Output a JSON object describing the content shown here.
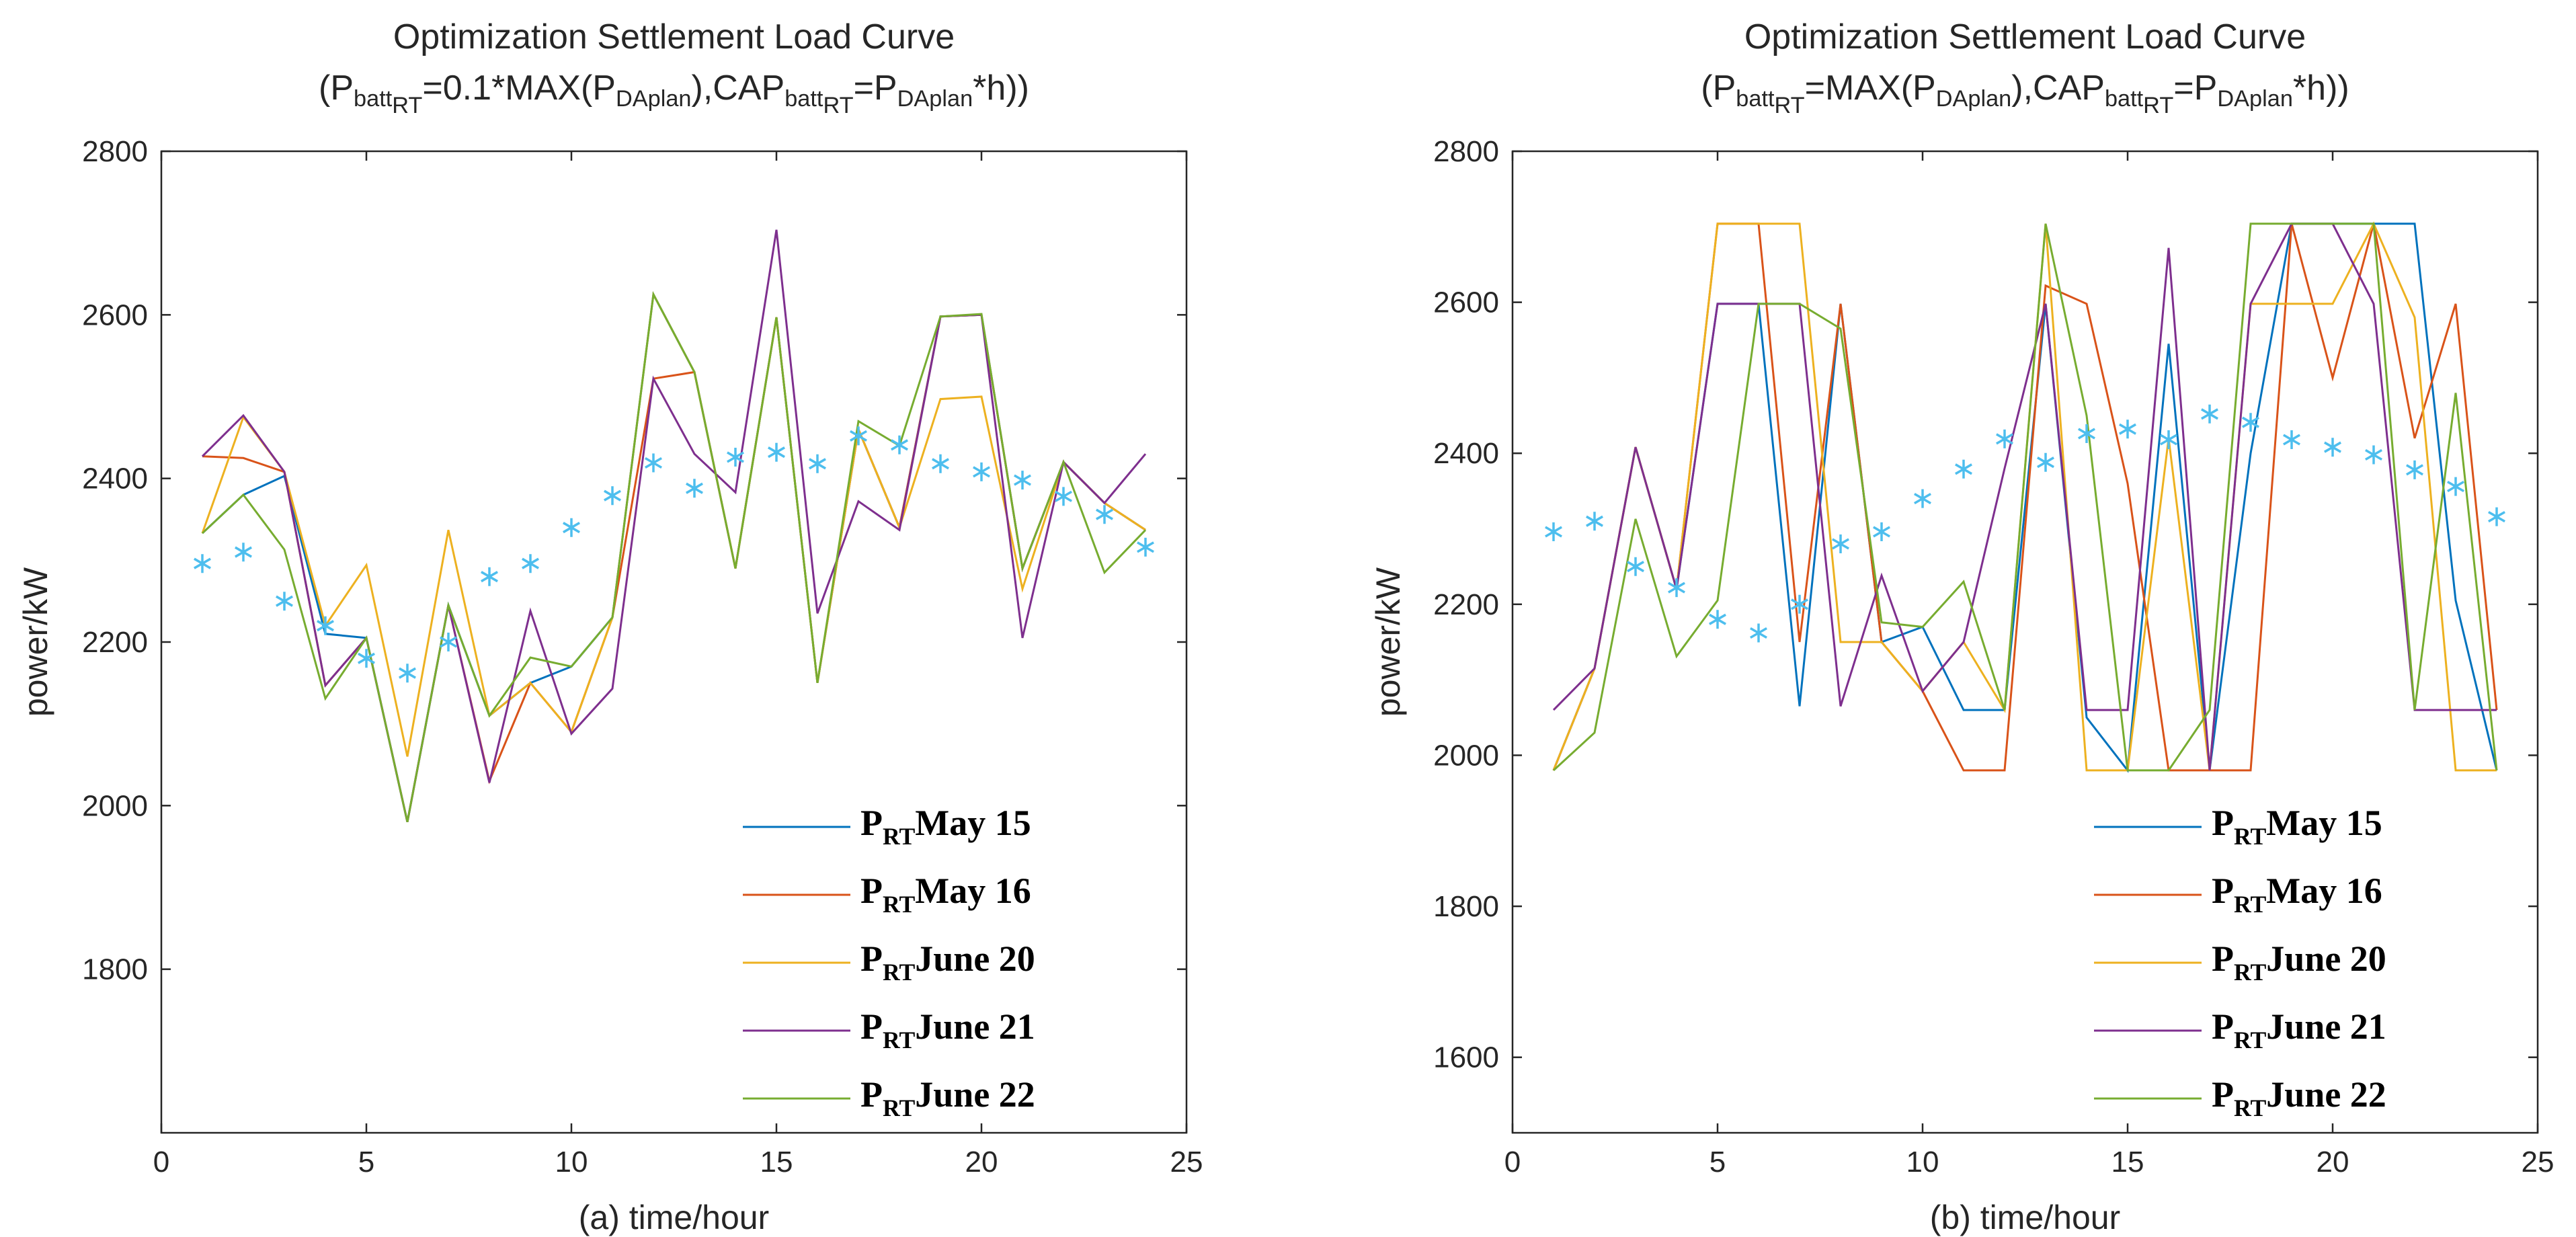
{
  "colors": {
    "series": [
      "#0072BD",
      "#D95319",
      "#EDB120",
      "#7E2F8E",
      "#77AC30"
    ],
    "marker": "#4DBEEE",
    "axis": "#262626"
  },
  "chart_data": [
    {
      "type": "line",
      "title": "Optimization Settlement Load Curve",
      "subtitle": {
        "t1": "(P",
        "s1": "batt",
        "ss1": "RT",
        "t2": "=0.1*MAX(P",
        "s2": "DAplan",
        "t3": "),CAP",
        "s3": "batt",
        "ss3": "RT",
        "t4": "=P",
        "s4": "DAplan",
        "t5": "*h))"
      },
      "xlabel": "(a) time/hour",
      "ylabel": "power/kW",
      "xlim": [
        0,
        25
      ],
      "ylim": [
        1600,
        2800
      ],
      "xticks": [
        "0",
        "5",
        "10",
        "15",
        "20",
        "25"
      ],
      "yticks": [
        "1800",
        "2000",
        "2200",
        "2400",
        "2600",
        "2800"
      ],
      "legend_position": "bottom-right",
      "x": [
        1,
        2,
        3,
        4,
        5,
        6,
        7,
        8,
        9,
        10,
        11,
        12,
        13,
        14,
        15,
        16,
        17,
        18,
        19,
        20,
        21,
        22,
        23,
        24
      ],
      "series": [
        {
          "name": "May 15",
          "prefix": "P",
          "sub": "RT",
          "values": [
            2333,
            2380,
            2403,
            2210,
            2205,
            1980,
            2245,
            2110,
            2150,
            2170,
            2230,
            2625,
            2530,
            2290,
            2597,
            2150,
            2460,
            2340,
            2598,
            2600,
            2290,
            2420,
            2370,
            2337
          ]
        },
        {
          "name": "May 16",
          "prefix": "P",
          "sub": "RT",
          "values": [
            2427,
            2425,
            2408,
            2147,
            2205,
            1980,
            2245,
            2030,
            2150,
            2090,
            2230,
            2522,
            2530,
            2290,
            2597,
            2150,
            2460,
            2340,
            2598,
            2600,
            2290,
            2420,
            2370,
            2337
          ]
        },
        {
          "name": "June 20",
          "prefix": "P",
          "sub": "RT",
          "values": [
            2333,
            2475,
            2408,
            2220,
            2294,
            2060,
            2337,
            2110,
            2150,
            2090,
            2230,
            2625,
            2530,
            2290,
            2597,
            2150,
            2460,
            2340,
            2497,
            2500,
            2265,
            2420,
            2370,
            2337
          ]
        },
        {
          "name": "June 21",
          "prefix": "P",
          "sub": "RT",
          "values": [
            2427,
            2477,
            2408,
            2147,
            2205,
            1980,
            2245,
            2028,
            2238,
            2088,
            2143,
            2522,
            2430,
            2383,
            2704,
            2235,
            2372,
            2337,
            2598,
            2600,
            2205,
            2420,
            2370,
            2430
          ]
        },
        {
          "name": "June 22",
          "prefix": "P",
          "sub": "RT",
          "values": [
            2333,
            2380,
            2313,
            2131,
            2205,
            1980,
            2245,
            2110,
            2181,
            2170,
            2230,
            2625,
            2530,
            2290,
            2597,
            2150,
            2470,
            2440,
            2598,
            2601,
            2290,
            2420,
            2285,
            2337
          ]
        }
      ],
      "markers": {
        "symbol": "*",
        "values": [
          2296,
          2310,
          2250,
          2220,
          2180,
          2162,
          2200,
          2280,
          2296,
          2340,
          2379,
          2419,
          2388,
          2426,
          2432,
          2418,
          2452,
          2441,
          2418,
          2408,
          2398,
          2378,
          2356,
          2316
        ]
      }
    },
    {
      "type": "line",
      "title": "Optimization Settlement Load Curve",
      "subtitle": {
        "t1": "(P",
        "s1": "batt",
        "ss1": "RT",
        "t2": "=MAX(P",
        "s2": "DAplan",
        "t3": "),CAP",
        "s3": "batt",
        "ss3": "RT",
        "t4": "=P",
        "s4": "DAplan",
        "t5": "*h))"
      },
      "xlabel": "(b) time/hour",
      "ylabel": "power/kW",
      "xlim": [
        0,
        25
      ],
      "ylim": [
        1500,
        2800
      ],
      "xticks": [
        "0",
        "5",
        "10",
        "15",
        "20",
        "25"
      ],
      "yticks": [
        "1600",
        "1800",
        "2000",
        "2200",
        "2400",
        "2600",
        "2800"
      ],
      "legend_position": "bottom-right",
      "x": [
        1,
        2,
        3,
        4,
        5,
        6,
        7,
        8,
        9,
        10,
        11,
        12,
        13,
        14,
        15,
        16,
        17,
        18,
        19,
        20,
        21,
        22,
        23,
        24
      ],
      "series": [
        {
          "name": "May 15",
          "prefix": "P",
          "sub": "RT",
          "values": [
            1980,
            2115,
            2408,
            2220,
            2598,
            2598,
            2065,
            2598,
            2150,
            2170,
            2060,
            2060,
            2598,
            2050,
            1980,
            2545,
            1980,
            2400,
            2704,
            2704,
            2704,
            2704,
            2205,
            1980
          ]
        },
        {
          "name": "May 16",
          "prefix": "P",
          "sub": "RT",
          "values": [
            1980,
            2115,
            2408,
            2220,
            2704,
            2704,
            2150,
            2598,
            2150,
            2085,
            1980,
            1980,
            2622,
            2598,
            2360,
            1980,
            1980,
            1980,
            2704,
            2500,
            2704,
            2420,
            2598,
            2060
          ]
        },
        {
          "name": "June 20",
          "prefix": "P",
          "sub": "RT",
          "values": [
            1980,
            2115,
            2408,
            2220,
            2704,
            2704,
            2704,
            2150,
            2150,
            2085,
            2150,
            2060,
            2704,
            1980,
            1980,
            2420,
            1980,
            2598,
            2598,
            2598,
            2704,
            2580,
            1980,
            1980
          ]
        },
        {
          "name": "June 21",
          "prefix": "P",
          "sub": "RT",
          "values": [
            2060,
            2115,
            2408,
            2220,
            2598,
            2598,
            2598,
            2065,
            2238,
            2085,
            2150,
            2380,
            2598,
            2060,
            2060,
            2672,
            1980,
            2598,
            2704,
            2704,
            2598,
            2060,
            2060,
            2060
          ]
        },
        {
          "name": "June 22",
          "prefix": "P",
          "sub": "RT",
          "values": [
            1980,
            2030,
            2313,
            2131,
            2205,
            2598,
            2598,
            2565,
            2176,
            2170,
            2230,
            2060,
            2704,
            2450,
            1980,
            1980,
            2060,
            2704,
            2704,
            2704,
            2704,
            2060,
            2480,
            1980
          ]
        }
      ],
      "markers": {
        "symbol": "*",
        "values": [
          2296,
          2310,
          2250,
          2222,
          2180,
          2162,
          2200,
          2280,
          2296,
          2340,
          2379,
          2419,
          2388,
          2426,
          2432,
          2418,
          2452,
          2441,
          2418,
          2408,
          2398,
          2378,
          2356,
          2316
        ]
      }
    }
  ]
}
